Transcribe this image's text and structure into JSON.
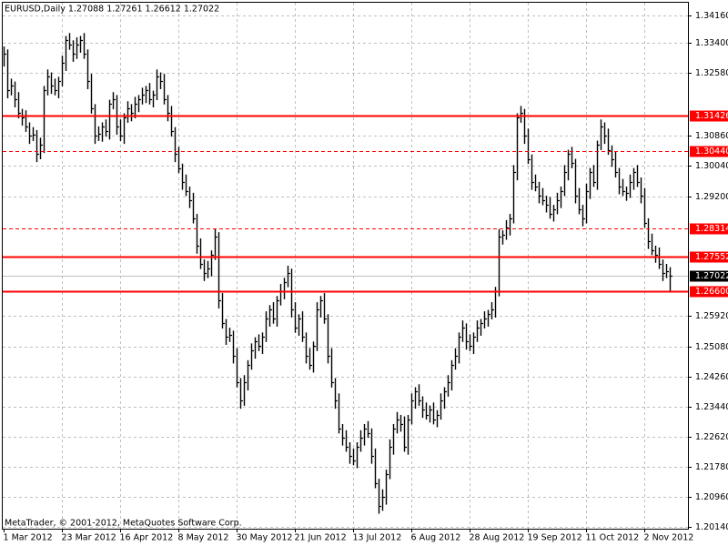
{
  "chart_data": {
    "type": "hlc",
    "title": "EURUSD,Daily  1.27088 1.27261 1.26612 1.27022",
    "watermark": "MetaTrader, © 2001-2012, MetaQuotes Software Corp.",
    "color": "#000000",
    "categories": [
      "1 Mar 2012",
      null,
      null,
      null,
      null,
      null,
      null,
      null,
      null,
      null,
      null,
      null,
      null,
      null,
      null,
      null,
      "23 Mar 2012",
      null,
      null,
      null,
      null,
      null,
      null,
      null,
      null,
      null,
      null,
      null,
      null,
      null,
      null,
      null,
      "16 Apr 2012",
      null,
      null,
      null,
      null,
      null,
      null,
      null,
      null,
      null,
      null,
      null,
      null,
      null,
      null,
      null,
      "8 May 2012",
      null,
      null,
      null,
      null,
      null,
      null,
      null,
      null,
      null,
      null,
      null,
      null,
      null,
      null,
      null,
      "30 May 2012",
      null,
      null,
      null,
      null,
      null,
      null,
      null,
      null,
      null,
      null,
      null,
      null,
      null,
      null,
      null,
      "21 Jun 2012",
      null,
      null,
      null,
      null,
      null,
      null,
      null,
      null,
      null,
      null,
      null,
      null,
      null,
      null,
      null,
      "13 Jul 2012",
      null,
      null,
      null,
      null,
      null,
      null,
      null,
      null,
      null,
      null,
      null,
      null,
      null,
      null,
      null,
      "6 Aug 2012",
      null,
      null,
      null,
      null,
      null,
      null,
      null,
      null,
      null,
      null,
      null,
      null,
      null,
      null,
      null,
      "28 Aug 2012",
      null,
      null,
      null,
      null,
      null,
      null,
      null,
      null,
      null,
      null,
      null,
      null,
      null,
      null,
      null,
      "19 Sep 2012",
      null,
      null,
      null,
      null,
      null,
      null,
      null,
      null,
      null,
      null,
      null,
      null,
      null,
      null,
      null,
      "11 Oct 2012",
      null,
      null,
      null,
      null,
      null,
      null,
      null,
      null,
      null,
      null,
      null,
      null,
      null,
      null,
      null,
      "2 Nov 2012",
      null,
      null,
      null,
      null,
      null,
      null,
      null
    ],
    "high": [
      1.3331,
      1.3323,
      1.3243,
      1.3235,
      1.3206,
      1.316,
      1.3156,
      1.3123,
      1.311,
      1.3102,
      1.3081,
      1.3223,
      1.3268,
      1.326,
      1.3243,
      1.3248,
      1.3306,
      1.336,
      1.3368,
      1.3348,
      1.3356,
      1.336,
      1.3368,
      1.3323,
      1.3256,
      1.3173,
      1.3112,
      1.3123,
      1.3131,
      1.3185,
      1.3206,
      1.3198,
      1.3131,
      1.3148,
      1.3181,
      1.3173,
      1.3193,
      1.3198,
      1.3218,
      1.3223,
      1.3231,
      1.321,
      1.3268,
      1.326,
      1.3256,
      1.3198,
      1.3168,
      1.311,
      1.3056,
      1.301,
      1.298,
      1.2947,
      1.293,
      1.2872,
      1.2805,
      1.2747,
      1.2743,
      1.2772,
      1.283,
      1.2822,
      1.2655,
      1.2584,
      1.256,
      1.2552,
      1.2504,
      1.2422,
      1.243,
      1.2471,
      1.2517,
      1.2534,
      1.2542,
      1.2547,
      1.2605,
      1.2622,
      1.263,
      1.2647,
      1.268,
      1.2697,
      1.273,
      1.2722,
      1.263,
      1.2597,
      1.2605,
      1.2547,
      1.2504,
      1.2522,
      1.263,
      1.2647,
      1.2655,
      1.2597,
      1.2504,
      1.2422,
      1.238,
      1.2296,
      1.2279,
      1.2246,
      1.2229,
      1.2246,
      1.2279,
      1.2296,
      1.2304,
      1.2284,
      1.2229,
      1.2146,
      1.2117,
      1.2171,
      1.2254,
      1.2296,
      1.2329,
      1.2321,
      1.2317,
      1.2321,
      1.238,
      1.2397,
      1.2405,
      1.2372,
      1.2355,
      1.2347,
      1.2355,
      1.2334,
      1.238,
      1.2397,
      1.243,
      1.2471,
      1.2504,
      1.2547,
      1.258,
      1.2572,
      1.2542,
      1.2547,
      1.258,
      1.2584,
      1.2605,
      1.2609,
      1.263,
      1.2672,
      1.283,
      1.2827,
      1.2855,
      1.2872,
      1.3006,
      1.3148,
      1.3168,
      1.316,
      1.3106,
      1.3035,
      1.298,
      1.296,
      1.2943,
      1.2922,
      1.2918,
      1.2897,
      1.293,
      1.2947,
      1.3006,
      1.3048,
      1.3056,
      1.3023,
      1.2943,
      1.2897,
      1.2955,
      1.2998,
      1.3006,
      1.3073,
      1.3131,
      1.3123,
      1.3106,
      1.306,
      1.3043,
      1.2998,
      1.2968,
      1.2947,
      1.298,
      1.2998,
      1.3006,
      1.2972,
      1.2943,
      1.286,
      1.2818,
      1.2785,
      1.278,
      1.2747,
      1.2735,
      1.27261
    ],
    "low": [
      1.3276,
      1.3189,
      1.3197,
      1.3164,
      1.3134,
      1.3114,
      1.3097,
      1.3064,
      1.3072,
      1.3014,
      1.3022,
      1.3039,
      1.3197,
      1.3201,
      1.3197,
      1.3189,
      1.3222,
      1.3264,
      1.3322,
      1.3289,
      1.3297,
      1.3314,
      1.3297,
      1.3214,
      1.3147,
      1.3064,
      1.3072,
      1.307,
      1.3084,
      1.3076,
      1.3159,
      1.3089,
      1.3072,
      1.3064,
      1.3122,
      1.3126,
      1.3134,
      1.3151,
      1.3172,
      1.3176,
      1.3172,
      1.3164,
      1.3184,
      1.3214,
      1.3172,
      1.3126,
      1.3084,
      1.3014,
      1.2984,
      1.2938,
      1.2921,
      1.2888,
      1.2846,
      1.2763,
      1.2721,
      1.2688,
      1.2696,
      1.2701,
      1.2746,
      1.2613,
      1.2558,
      1.2513,
      1.2521,
      1.2462,
      1.2396,
      1.2338,
      1.2346,
      1.2388,
      1.2445,
      1.2475,
      1.2496,
      1.2488,
      1.2521,
      1.2563,
      1.2571,
      1.2563,
      1.2621,
      1.2638,
      1.2671,
      1.2588,
      1.2546,
      1.2538,
      1.2521,
      1.2462,
      1.2445,
      1.2437,
      1.2496,
      1.2588,
      1.2571,
      1.2462,
      1.2396,
      1.2338,
      1.227,
      1.2237,
      1.222,
      1.2187,
      1.2183,
      1.2175,
      1.222,
      1.2237,
      1.2258,
      1.2187,
      1.212,
      1.205,
      1.2058,
      1.2075,
      1.2145,
      1.2212,
      1.227,
      1.2275,
      1.222,
      1.2212,
      1.2295,
      1.2338,
      1.2346,
      1.2313,
      1.2308,
      1.23,
      1.2295,
      1.2287,
      1.2308,
      1.2338,
      1.2371,
      1.2388,
      1.2445,
      1.2462,
      1.2521,
      1.25,
      1.2496,
      1.2488,
      1.2521,
      1.2538,
      1.2558,
      1.2563,
      1.2583,
      1.2588,
      1.2646,
      1.2788,
      1.2801,
      1.2813,
      1.2846,
      1.2964,
      1.3122,
      1.3064,
      1.3009,
      1.2938,
      1.2934,
      1.2901,
      1.2896,
      1.2876,
      1.2859,
      1.2851,
      1.2871,
      1.2888,
      1.2921,
      1.2964,
      1.2997,
      1.2901,
      1.2871,
      1.2838,
      1.2846,
      1.2913,
      1.2946,
      1.2938,
      1.3047,
      1.3064,
      1.3034,
      1.3001,
      1.2972,
      1.2926,
      1.2921,
      1.2908,
      1.2916,
      1.2938,
      1.2946,
      1.2901,
      1.2834,
      1.2776,
      1.2759,
      1.2738,
      1.2721,
      1.2688,
      1.2696,
      1.26612
    ],
    "close": [
      1.3311,
      1.3211,
      1.3223,
      1.3186,
      1.3148,
      1.3136,
      1.3111,
      1.3086,
      1.309,
      1.3036,
      1.3061,
      1.3211,
      1.3248,
      1.3223,
      1.3211,
      1.3236,
      1.3286,
      1.3348,
      1.3336,
      1.3311,
      1.3336,
      1.3348,
      1.3311,
      1.3236,
      1.3161,
      1.3086,
      1.3092,
      1.3111,
      1.3098,
      1.3173,
      1.3186,
      1.3111,
      1.3086,
      1.3136,
      1.3161,
      1.3148,
      1.3173,
      1.3186,
      1.3198,
      1.3211,
      1.3186,
      1.3198,
      1.3248,
      1.3236,
      1.3186,
      1.3148,
      1.3098,
      1.3036,
      1.2998,
      1.296,
      1.2935,
      1.291,
      1.286,
      1.2785,
      1.2735,
      1.271,
      1.2723,
      1.276,
      1.281,
      1.2635,
      1.2572,
      1.2535,
      1.254,
      1.2484,
      1.241,
      1.236,
      1.241,
      1.2459,
      1.2497,
      1.2522,
      1.251,
      1.2535,
      1.2585,
      1.261,
      1.2585,
      1.2635,
      1.266,
      1.2685,
      1.271,
      1.261,
      1.256,
      1.2585,
      1.2535,
      1.2484,
      1.2459,
      1.251,
      1.261,
      1.2635,
      1.2585,
      1.2484,
      1.241,
      1.236,
      1.2284,
      1.2259,
      1.2234,
      1.2209,
      1.2197,
      1.2234,
      1.2259,
      1.2284,
      1.2272,
      1.2209,
      1.2134,
      1.2072,
      1.2097,
      1.2159,
      1.2234,
      1.2284,
      1.2309,
      1.2297,
      1.2234,
      1.2309,
      1.236,
      1.2385,
      1.236,
      1.2335,
      1.2322,
      1.2335,
      1.2309,
      1.2322,
      1.236,
      1.2385,
      1.241,
      1.2459,
      1.2484,
      1.2535,
      1.256,
      1.2522,
      1.251,
      1.2535,
      1.256,
      1.2572,
      1.2585,
      1.2597,
      1.261,
      1.266,
      1.281,
      1.2815,
      1.2835,
      1.286,
      1.2986,
      1.3136,
      1.3148,
      1.3086,
      1.3023,
      1.296,
      1.2948,
      1.2923,
      1.291,
      1.2898,
      1.2873,
      1.2885,
      1.291,
      1.2935,
      1.2986,
      1.3036,
      1.3011,
      1.2923,
      1.2885,
      1.286,
      1.2935,
      1.2986,
      1.296,
      1.3061,
      1.3111,
      1.3086,
      1.3048,
      1.3023,
      1.2986,
      1.2948,
      1.2935,
      1.293,
      1.296,
      1.2986,
      1.296,
      1.2923,
      1.2848,
      1.2798,
      1.2773,
      1.276,
      1.2735,
      1.271,
      1.2715,
      1.27022
    ],
    "ylim": [
      1.2009,
      1.3451
    ],
    "yticks": [
      {
        "value": 1.3416,
        "label": "1.34160"
      },
      {
        "value": 1.334,
        "label": "1.33400"
      },
      {
        "value": 1.3258,
        "label": "1.32580"
      },
      {
        "value": 1.3086,
        "label": "1.30860"
      },
      {
        "value": 1.3004,
        "label": "1.30040"
      },
      {
        "value": 1.292,
        "label": "1.29200"
      },
      {
        "value": 1.2592,
        "label": "1.25920"
      },
      {
        "value": 1.2508,
        "label": "1.25080"
      },
      {
        "value": 1.2426,
        "label": "1.24260"
      },
      {
        "value": 1.2344,
        "label": "1.23440"
      },
      {
        "value": 1.2262,
        "label": "1.22620"
      },
      {
        "value": 1.2178,
        "label": "1.21780"
      },
      {
        "value": 1.2096,
        "label": "1.20960"
      },
      {
        "value": 1.2014,
        "label": "1.20140"
      }
    ],
    "grid": true,
    "levels": [
      {
        "value": 1.31426,
        "dashed": false,
        "color": "#ff0000"
      },
      {
        "value": 1.3044,
        "label": "1.30440",
        "dashed": true,
        "color": "#ff0000"
      },
      {
        "value": 1.28314,
        "dashed": true,
        "color": "#ff0000"
      },
      {
        "value": 1.27552,
        "dashed": false,
        "color": "#ff0000"
      },
      {
        "value": 1.266,
        "label": "1.26600",
        "dashed": false,
        "color": "#ff0000"
      }
    ],
    "last_price": {
      "value": 1.27022,
      "color": "#c0c0c0"
    }
  }
}
